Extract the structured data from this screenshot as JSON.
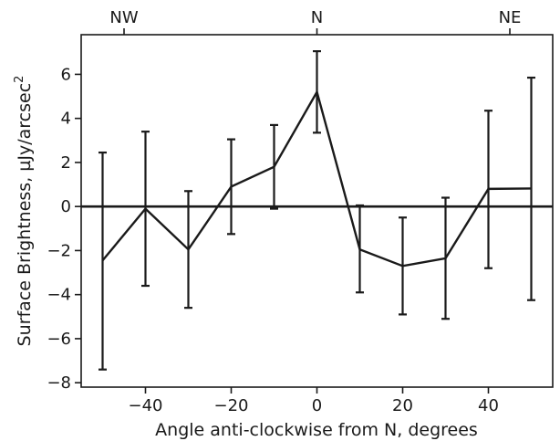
{
  "chart_data": {
    "type": "line",
    "xlabel": "Angle anti-clockwise from N, degrees",
    "ylabel": "Surface Brightness, µJy/arcsec",
    "ylabel_superscript": "2",
    "xlim": [
      -55,
      55
    ],
    "ylim": [
      -8.2,
      7.8
    ],
    "x_ticks": [
      -40,
      -20,
      0,
      20,
      40
    ],
    "x_tick_labels": [
      "−40",
      "−20",
      "0",
      "20",
      "40"
    ],
    "y_ticks": [
      -8,
      -6,
      -4,
      -2,
      0,
      2,
      4,
      6
    ],
    "y_tick_labels": [
      "−8",
      "−6",
      "−4",
      "−2",
      "0",
      "2",
      "4",
      "6"
    ],
    "top_ticks": [
      {
        "x": -45,
        "label": "NW"
      },
      {
        "x": 0,
        "label": "N"
      },
      {
        "x": 45,
        "label": "NE"
      }
    ],
    "zero_line": 0,
    "series": [
      {
        "x": [
          -50,
          -40,
          -30,
          -20,
          -10,
          0,
          10,
          20,
          30,
          40,
          50
        ],
        "y": [
          -2.45,
          -0.1,
          -1.95,
          0.9,
          1.8,
          5.2,
          -1.95,
          -2.7,
          -2.35,
          0.8,
          0.82
        ],
        "y_lower": [
          -7.4,
          -3.6,
          -4.6,
          -1.25,
          -0.1,
          3.35,
          -3.9,
          -4.9,
          -5.1,
          -2.8,
          -4.25
        ],
        "y_upper": [
          2.45,
          3.4,
          0.7,
          3.05,
          3.7,
          7.05,
          0.05,
          -0.5,
          0.4,
          4.35,
          5.85
        ]
      }
    ],
    "colors": {
      "line": "#1a1a1a"
    },
    "grid": false
  }
}
